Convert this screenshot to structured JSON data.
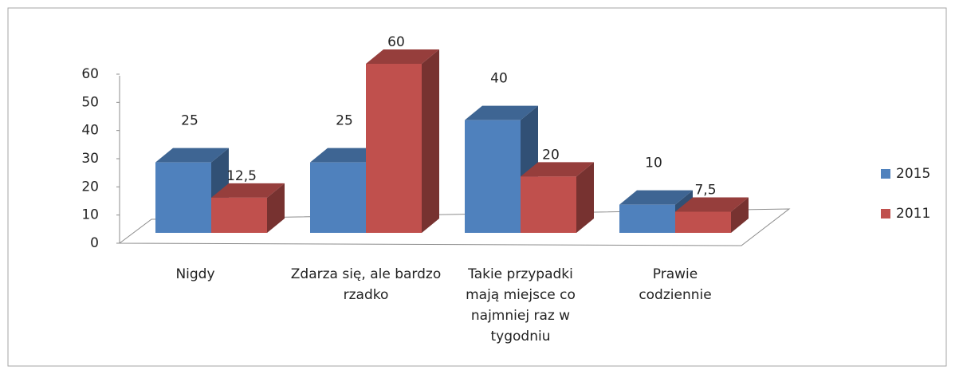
{
  "chart_data": {
    "type": "bar3d",
    "categories": [
      "Nigdy",
      "Zdarza się, ale bardzo rzadko",
      "Takie przypadki mają miejsce co najmniej raz w tygodniu",
      "Prawie codziennie"
    ],
    "series": [
      {
        "name": "2015",
        "color": "#4f81bd",
        "values": [
          25,
          25,
          40,
          10
        ]
      },
      {
        "name": "2011",
        "color": "#c0504d",
        "values": [
          12.5,
          60,
          20,
          7.5
        ],
        "value_labels": [
          "12,5",
          "60",
          "20",
          "7,5"
        ]
      }
    ],
    "ylim": [
      0,
      60
    ],
    "yticks": [
      0,
      10,
      20,
      30,
      40,
      50,
      60
    ],
    "legend": "right"
  }
}
